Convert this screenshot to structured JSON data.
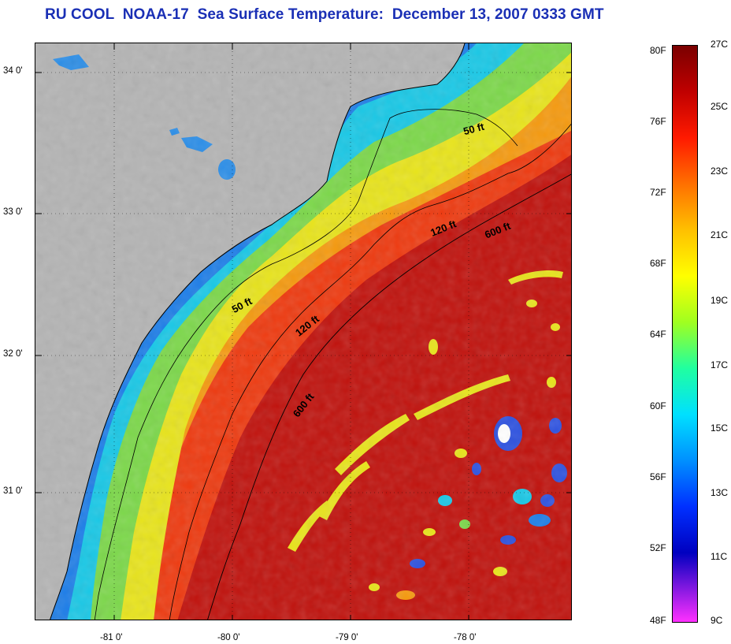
{
  "title": "RU COOL  NOAA-17  Sea Surface Temperature:  December 13, 2007 0333 GMT",
  "map": {
    "lat_ticks": [
      "34 0'",
      "33 0'",
      "32 0'",
      "31 0'"
    ],
    "lon_ticks": [
      "-81 0'",
      "-80 0'",
      "-79 0'",
      "-78 0'"
    ],
    "isobath_labels": [
      "50 ft",
      "120 ft",
      "600 ft",
      "50 ft",
      "120 ft",
      "600 ft"
    ],
    "colors": {
      "land": "#b4b4b4",
      "coastal": "#1e7ee8",
      "nearshore": "#19c8e6",
      "shelf": "#e6e619",
      "outer_shelf": "#f59a10",
      "slope": "#ee3a10",
      "gulf_stream": "#b80a0a",
      "cloud": "#2e52e0"
    }
  },
  "colorbar": {
    "fahrenheit_labels": [
      "80F",
      "76F",
      "72F",
      "68F",
      "64F",
      "60F",
      "56F",
      "52F",
      "48F"
    ],
    "celsius_labels": [
      "27C",
      "25C",
      "23C",
      "21C",
      "19C",
      "17C",
      "15C",
      "13C",
      "11C",
      "9C"
    ],
    "gradient_colors": [
      "#7a0000",
      "#c00000",
      "#ff1a00",
      "#ff7000",
      "#ffc000",
      "#ffff00",
      "#a0ff20",
      "#20ffa0",
      "#00e0ff",
      "#0090ff",
      "#0030ff",
      "#0000c0",
      "#ff30ff"
    ]
  }
}
